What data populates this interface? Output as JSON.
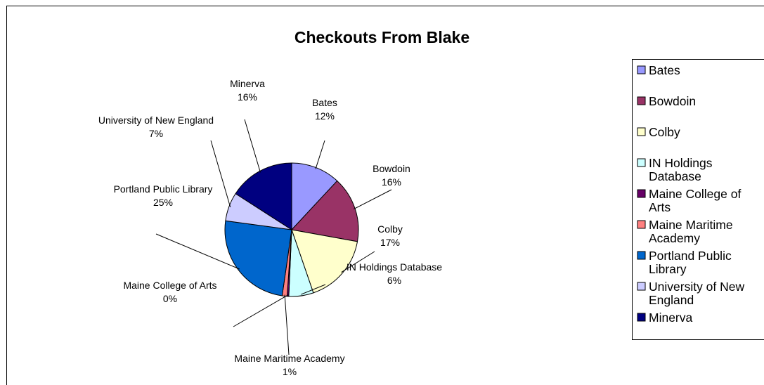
{
  "chart_data": {
    "type": "pie",
    "title": "Checkouts From Blake",
    "categories": [
      "Bates",
      "Bowdoin",
      "Colby",
      "IN Holdings Database",
      "Maine College of Arts",
      "Maine Maritime Academy",
      "Portland Public Library",
      "University of New England",
      "Minerva"
    ],
    "values": [
      12,
      16,
      17,
      6,
      0,
      1,
      25,
      7,
      16
    ],
    "data_labels": [
      "12%",
      "16%",
      "17%",
      "6%",
      "0%",
      "1%",
      "25%",
      "7%",
      "16%"
    ],
    "colors": [
      "#9999FF",
      "#993366",
      "#FFFFCC",
      "#CCFFFF",
      "#660066",
      "#FF8080",
      "#0066CC",
      "#CCCCFF",
      "#000080"
    ],
    "legend_placement": "right",
    "legend_entries": [
      [
        "Bates"
      ],
      [
        "Bowdoin"
      ],
      [
        "Colby"
      ],
      [
        "IN Holdings",
        "Database"
      ],
      [
        "Maine College of",
        "Arts"
      ],
      [
        "Maine Maritime",
        "Academy"
      ],
      [
        "Portland Public",
        "Library"
      ],
      [
        "University of New",
        "England"
      ],
      [
        "Minerva"
      ]
    ]
  }
}
